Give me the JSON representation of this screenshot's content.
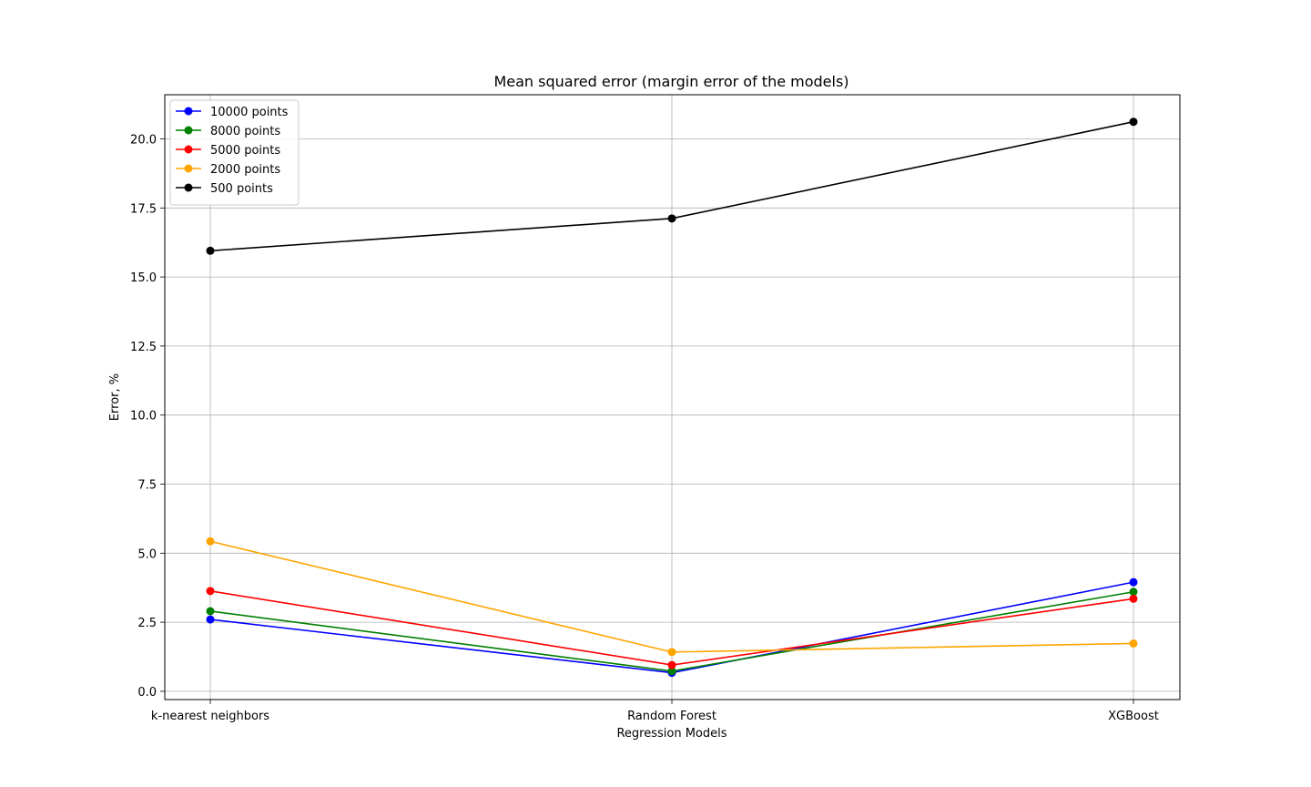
{
  "chart_data": {
    "type": "line",
    "title": "Mean squared error (margin error of the models)",
    "xlabel": "Regression Models",
    "ylabel": "Error, %",
    "categories": [
      "k-nearest neighbors",
      "Random Forest",
      "XGBoost"
    ],
    "ylim": [
      -0.3,
      21.6
    ],
    "yticks": [
      0.0,
      2.5,
      5.0,
      7.5,
      10.0,
      12.5,
      15.0,
      17.5,
      20.0
    ],
    "ytick_labels": [
      "0.0",
      "2.5",
      "5.0",
      "7.5",
      "10.0",
      "12.5",
      "15.0",
      "17.5",
      "20.0"
    ],
    "grid": true,
    "legend_position": "top-left",
    "series": [
      {
        "name": "10000 points",
        "color": "#0000ff",
        "values": [
          2.6,
          0.67,
          3.95
        ]
      },
      {
        "name": "8000 points",
        "color": "#008000",
        "values": [
          2.9,
          0.73,
          3.6
        ]
      },
      {
        "name": "5000 points",
        "color": "#ff0000",
        "values": [
          3.63,
          0.95,
          3.35
        ]
      },
      {
        "name": "2000 points",
        "color": "#ffa500",
        "values": [
          5.43,
          1.42,
          1.73
        ]
      },
      {
        "name": "500 points",
        "color": "#000000",
        "values": [
          15.95,
          17.12,
          20.62
        ]
      }
    ]
  }
}
